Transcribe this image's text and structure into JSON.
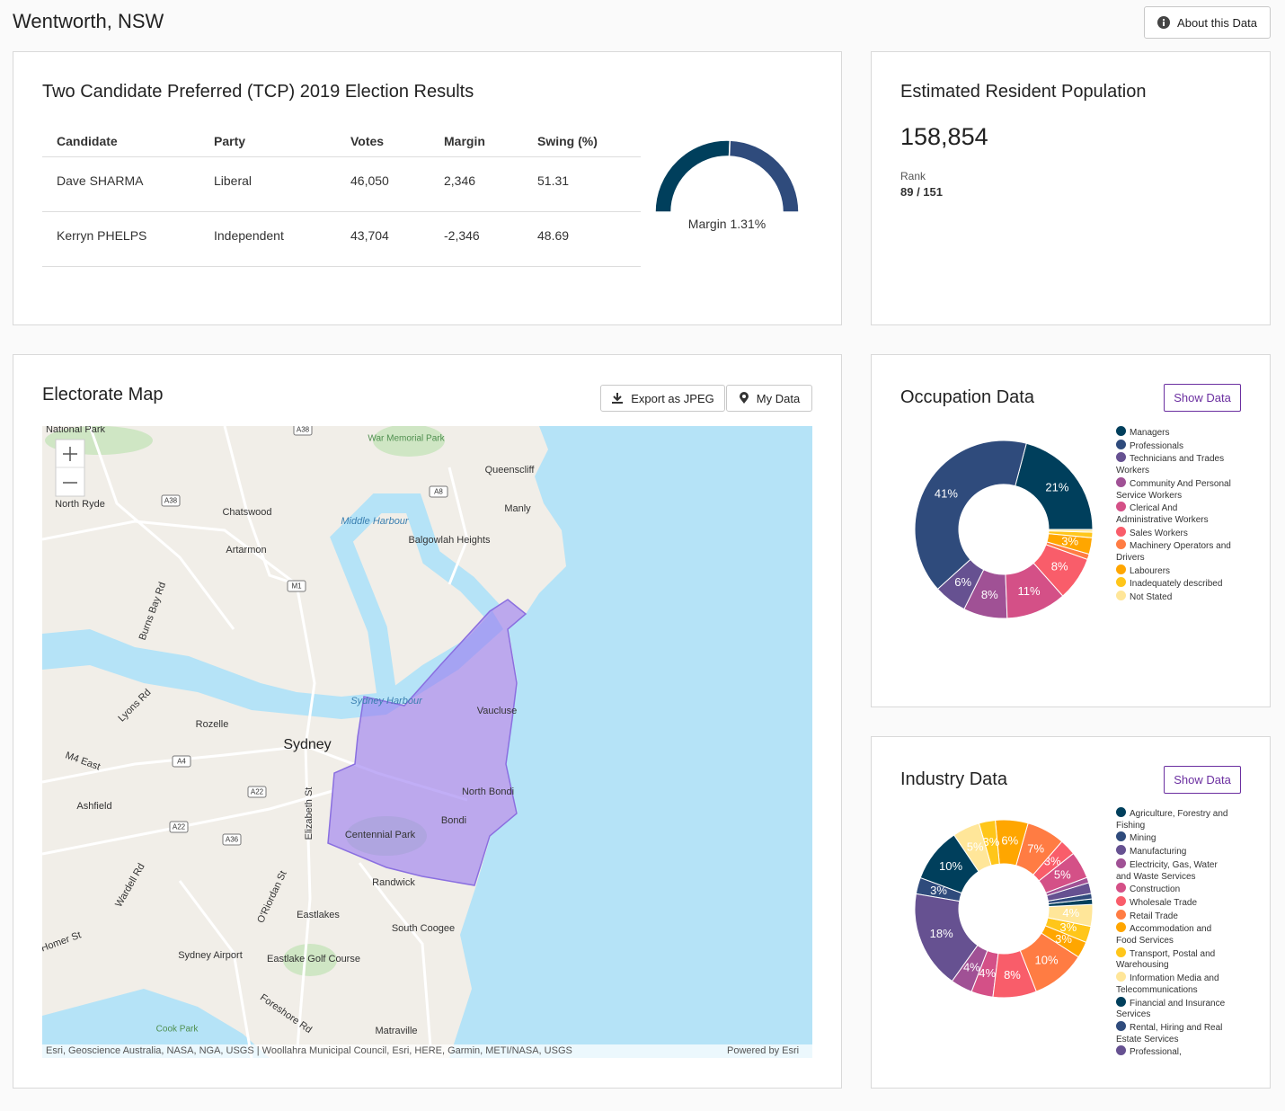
{
  "header": {
    "title": "Wentworth, NSW",
    "button": "About this Data"
  },
  "election": {
    "title": "Two Candidate Preferred (TCP) 2019 Election Results",
    "columns": [
      "Candidate",
      "Party",
      "Votes",
      "Margin",
      "Swing (%)"
    ],
    "rows": [
      [
        "Dave SHARMA",
        "Liberal",
        "46,050",
        "2,346",
        51.31
      ],
      [
        "Kerryn PHELPS",
        "Independent",
        "43,704",
        "-2,346",
        48.69
      ]
    ],
    "gauge": {
      "type": "gauge",
      "colors": [
        "#003f5c",
        "#2f4b7c"
      ],
      "label": "Margin 1.31%"
    }
  },
  "population": {
    "title": "Estimated Resident Population",
    "value": "158,854",
    "rank_label": "Rank",
    "rank": "89 / 151"
  },
  "map": {
    "title": "Electorate Map",
    "buttons": [
      "Export as JPEG",
      "My Data"
    ],
    "places": [
      "National Park",
      "War Memorial Park",
      "Queenscliff",
      "Manly",
      "North Ryde",
      "Chatswood",
      "Middle Harbour",
      "Balgowlah Heights",
      "Artarmon",
      "Burns Bay Rd",
      "Lyons Rd",
      "Sydney Harbour",
      "Vaucluse",
      "Rozelle",
      "Sydney",
      "M4 East",
      "North Bondi",
      "Ashfield",
      "Elizabeth St",
      "Bondi",
      "Centennial Park",
      "Randwick",
      "Wardell Rd",
      "O'Riordan St",
      "Eastlakes",
      "South Coogee",
      "Homer St",
      "Sydney Airport",
      "Eastlake Golf Course",
      "Foreshore Rd",
      "Cook Park",
      "Matraville"
    ],
    "shields": [
      "A38",
      "A8",
      "A38",
      "M1",
      "A4",
      "A22",
      "A22",
      "A36"
    ],
    "attribution": "Esri, Geoscience Australia, NASA, NGA, USGS | Woollahra Municipal Council, Esri, HERE, Garmin, METI/NASA, USGS",
    "powered": "Powered by Esri"
  },
  "occupation": {
    "title": "Occupation Data",
    "button": "Show Data",
    "chart": {
      "type": "donut",
      "categories": [
        "Managers",
        "Professionals",
        "Technicians and Trades Workers",
        "Community And Personal Service Workers",
        "Clerical And Administrative Workers",
        "Sales Workers",
        "Machinery Operators and Drivers",
        "Labourers",
        "Inadequately described",
        "Not Stated"
      ],
      "values": [
        21,
        41,
        6,
        8,
        11,
        8,
        1,
        3,
        1,
        0.5
      ],
      "value_labels": [
        "21%",
        "41%",
        "6%",
        "8%",
        "11%",
        "8%",
        null,
        "3%",
        null,
        null
      ],
      "colors": [
        "#003f5c",
        "#2f4b7c",
        "#665191",
        "#a05195",
        "#d45087",
        "#f95d6a",
        "#ff7c43",
        "#ffa600",
        "#ffc61a",
        "#ffe699"
      ]
    }
  },
  "industry": {
    "title": "Industry Data",
    "button": "Show Data",
    "chart": {
      "type": "donut",
      "categories": [
        "Agriculture, Forestry and Fishing",
        "Mining",
        "Manufacturing",
        "Electricity, Gas, Water and Waste Services",
        "Construction",
        "Wholesale Trade",
        "Retail Trade",
        "Accommodation and Food Services",
        "Transport, Postal and Warehousing",
        "Information Media and Telecommunications",
        "Financial and Insurance Services",
        "Rental, Hiring and Real Estate Services",
        "Professional,",
        null,
        null,
        null,
        null,
        null,
        null,
        null
      ],
      "values": [
        10,
        3,
        18,
        4,
        4,
        8,
        10,
        3,
        3,
        4,
        1,
        1,
        2,
        1,
        5,
        3,
        7,
        6,
        3,
        5
      ],
      "value_labels": [
        "10%",
        "3%",
        "18%",
        "4%",
        "4%",
        "8%",
        "10%",
        "3%",
        "3%",
        "4%",
        null,
        null,
        null,
        null,
        "5%",
        "3%",
        "7%",
        "6%",
        "3%",
        "5%"
      ],
      "colors": [
        "#003f5c",
        "#2f4b7c",
        "#665191",
        "#a05195",
        "#d45087",
        "#f95d6a",
        "#ff7c43",
        "#ffa600",
        "#ffc61a",
        "#ffe699",
        "#003f5c",
        "#2f4b7c",
        "#665191",
        "#a05195",
        "#d45087",
        "#f95d6a",
        "#ff7c43",
        "#ffa600",
        "#ffc61a",
        "#ffe699"
      ]
    }
  }
}
